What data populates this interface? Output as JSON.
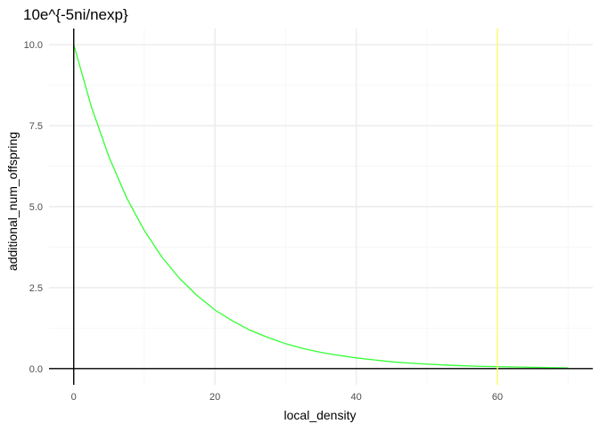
{
  "chart_data": {
    "type": "line",
    "title": "10e^{-5ni/nexp}",
    "xlabel": "local_density",
    "ylabel": "additional_num_offspring",
    "xlim": [
      -3.5,
      73.5
    ],
    "ylim": [
      -0.5,
      10.5
    ],
    "xticks": [
      0,
      20,
      40,
      60
    ],
    "xtick_labels": [
      "0",
      "20",
      "40",
      "60"
    ],
    "yticks": [
      0,
      2.5,
      5,
      7.5,
      10
    ],
    "ytick_labels": [
      "0.0",
      "2.5",
      "5.0",
      "7.5",
      "10.0"
    ],
    "x_minor_ticks": [
      10,
      30,
      50,
      70
    ],
    "y_minor_ticks": [
      1.25,
      3.75,
      6.25,
      8.75
    ],
    "grid": true,
    "legend": "none",
    "series": [
      {
        "color": "#33ff33",
        "x": [
          0,
          2.5,
          5,
          7.5,
          10,
          12.5,
          15,
          17.5,
          20,
          22.5,
          25,
          27.5,
          30,
          32.5,
          35,
          37.5,
          40,
          42.5,
          45,
          47.5,
          50,
          52.5,
          55,
          57.5,
          60,
          62.5,
          65,
          67.5,
          70
        ],
        "y": [
          10,
          8.08,
          6.53,
          5.27,
          4.26,
          3.44,
          2.78,
          2.25,
          1.81,
          1.47,
          1.18,
          0.96,
          0.77,
          0.62,
          0.5,
          0.41,
          0.33,
          0.27,
          0.21,
          0.17,
          0.14,
          0.11,
          0.09,
          0.07,
          0.06,
          0.05,
          0.04,
          0.03,
          0.02
        ]
      }
    ],
    "reference_lines": [
      {
        "orientation": "vertical",
        "value": 0,
        "color": "#000000"
      },
      {
        "orientation": "horizontal",
        "value": 0,
        "color": "#000000"
      },
      {
        "orientation": "vertical",
        "value": 60,
        "color": "#ffff66"
      }
    ],
    "colors": {
      "grid_major": "#ebebeb",
      "grid_minor": "#f5f5f5",
      "tick_text": "#4d4d4d"
    }
  }
}
